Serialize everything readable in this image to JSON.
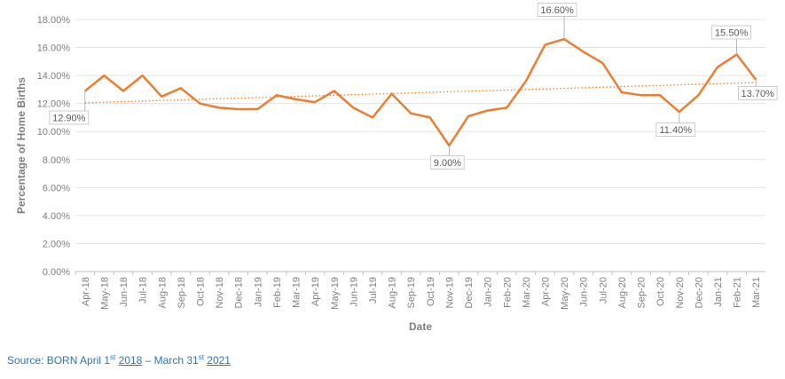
{
  "chart_data": {
    "type": "line",
    "xlabel": "Date",
    "ylabel": "Percentage of Home Births",
    "ylim": [
      0,
      18
    ],
    "y_ticks": [
      "0.00%",
      "2.00%",
      "4.00%",
      "6.00%",
      "8.00%",
      "10.00%",
      "12.00%",
      "14.00%",
      "16.00%",
      "18.00%"
    ],
    "grid": true,
    "categories": [
      "Apr-18",
      "May-18",
      "Jun-18",
      "Jul-18",
      "Aug-18",
      "Sep-18",
      "Oct-18",
      "Nov-18",
      "Dec-18",
      "Jan-19",
      "Feb-19",
      "Mar-19",
      "Apr-19",
      "May-19",
      "Jun-19",
      "Jul-19",
      "Aug-19",
      "Sep-19",
      "Oct-19",
      "Nov-19",
      "Dec-19",
      "Jan-20",
      "Feb-20",
      "Mar-20",
      "Apr-20",
      "May-20",
      "Jun-20",
      "Jul-20",
      "Aug-20",
      "Sep-20",
      "Oct-20",
      "Nov-20",
      "Dec-20",
      "Jan-21",
      "Feb-21",
      "Mar-21"
    ],
    "values": [
      12.9,
      14.0,
      12.9,
      14.0,
      12.5,
      13.1,
      12.0,
      11.7,
      11.6,
      11.6,
      12.6,
      12.3,
      12.1,
      12.9,
      11.7,
      11.0,
      12.7,
      11.3,
      11.0,
      9.0,
      11.1,
      11.5,
      11.7,
      13.6,
      16.2,
      16.6,
      15.7,
      14.9,
      12.8,
      12.6,
      12.6,
      11.4,
      12.6,
      14.6,
      15.5,
      13.7
    ],
    "series_color": "#ed7d31",
    "trendline": {
      "type": "linear",
      "color": "#ed7d31",
      "style": "dotted"
    },
    "annotations": [
      {
        "index": 0,
        "label": "12.90%"
      },
      {
        "index": 19,
        "label": "9.00%"
      },
      {
        "index": 25,
        "label": "16.60%"
      },
      {
        "index": 31,
        "label": "11.40%"
      },
      {
        "index": 34,
        "label": "15.50%"
      },
      {
        "index": 35,
        "label": "13.70%"
      }
    ]
  },
  "source": {
    "prefix": "Source:  BORN April 1",
    "sup1": "st",
    "year1": "2018",
    "middle": " – March 31",
    "sup2": "st",
    "year2": "2021",
    "color": "#2e75b6"
  }
}
